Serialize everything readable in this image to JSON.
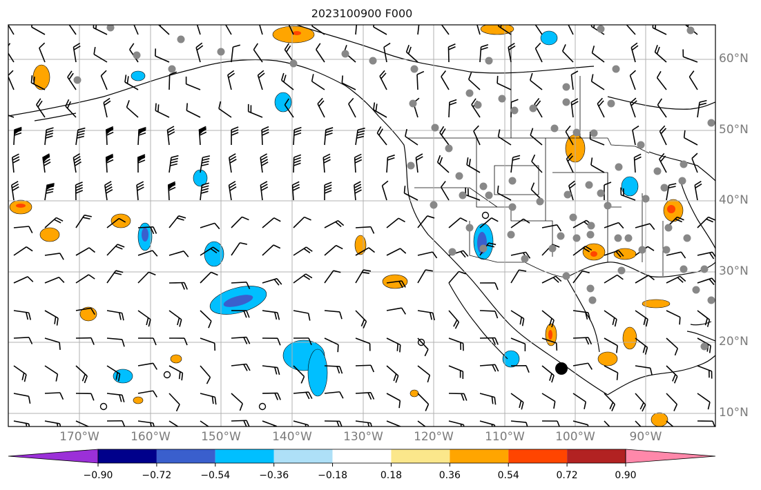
{
  "title": "2023100900 F000",
  "lon_labels": [
    "170°W",
    "160°W",
    "150°W",
    "140°W",
    "130°W",
    "120°W",
    "110°W",
    "100°W",
    "90°W"
  ],
  "lat_labels": [
    "60°N",
    "50°N",
    "40°N",
    "30°N",
    "20°N",
    "10°N"
  ],
  "colorbar": {
    "colors": [
      "#9b30d8",
      "#00008b",
      "#3a5fcd",
      "#00bfff",
      "#aee0f7",
      "#ffffff",
      "#fbe78b",
      "#ffa500",
      "#ff4500",
      "#b22222",
      "#ff88aa"
    ],
    "tick_labels": [
      "−0.90",
      "−0.72",
      "−0.54",
      "−0.36",
      "−0.18",
      "0.18",
      "0.36",
      "0.54",
      "0.72",
      "0.90"
    ],
    "extend": "both"
  },
  "icons": {
    "wind": "wind-barb-icon",
    "station": "station-dot-icon",
    "calm": "calm-circle-icon",
    "storm": "storm-center-icon"
  }
}
